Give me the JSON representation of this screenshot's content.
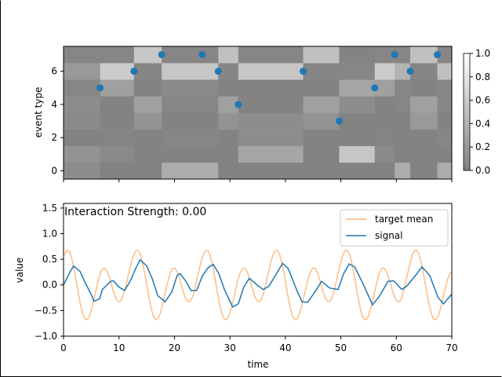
{
  "chart_data": [
    {
      "type": "heatmap",
      "ylabel": "event type",
      "xlim": [
        0,
        70
      ],
      "ylim": [
        -0.5,
        7.5
      ],
      "yticks": [
        "0",
        "2",
        "4",
        "6"
      ],
      "xticks": [
        0,
        10,
        20,
        30,
        40,
        50,
        60,
        70
      ],
      "column_edges": [
        0,
        6.6,
        12.7,
        17.7,
        25.0,
        27.9,
        31.5,
        43.2,
        49.7,
        56.1,
        59.7,
        62.5,
        67.4,
        70
      ],
      "rows": [
        [
          0.1,
          0.02,
          0.02,
          0.35,
          0.35,
          0.02,
          0.02,
          0.02,
          0.02,
          0.02,
          0.35,
          0.02,
          0.35
        ],
        [
          0.15,
          0.08,
          0.02,
          0.02,
          0.02,
          0.02,
          0.3,
          0.02,
          0.55,
          0.08,
          0.02,
          0.02,
          0.02
        ],
        [
          0.02,
          0.03,
          0.02,
          0.05,
          0.05,
          0.02,
          0.1,
          0.02,
          0.02,
          0.03,
          0.02,
          0.02,
          0.05
        ],
        [
          0.08,
          0.02,
          0.15,
          0.02,
          0.02,
          0.15,
          0.1,
          0.15,
          0.02,
          0.02,
          0.02,
          0.2,
          0.02
        ],
        [
          0.1,
          0.02,
          0.25,
          0.05,
          0.05,
          0.25,
          0.02,
          0.25,
          0.1,
          0.02,
          0.05,
          0.25,
          0.05
        ],
        [
          0.05,
          0.25,
          0.02,
          0.08,
          0.08,
          0.02,
          0.02,
          0.02,
          0.3,
          0.25,
          0.05,
          0.02,
          0.05
        ],
        [
          0.2,
          0.6,
          0.05,
          0.55,
          0.55,
          0.05,
          0.55,
          0.05,
          0.05,
          0.6,
          0.4,
          0.05,
          0.5
        ],
        [
          0.05,
          0.05,
          0.55,
          0.05,
          0.05,
          0.5,
          0.05,
          0.5,
          0.02,
          0.05,
          0.05,
          0.5,
          0.05
        ]
      ],
      "events": [
        {
          "t": 6.6,
          "type": 5
        },
        {
          "t": 12.7,
          "type": 6
        },
        {
          "t": 17.7,
          "type": 7
        },
        {
          "t": 25.0,
          "type": 7
        },
        {
          "t": 27.9,
          "type": 6
        },
        {
          "t": 31.5,
          "type": 4
        },
        {
          "t": 43.2,
          "type": 6
        },
        {
          "t": 49.7,
          "type": 3
        },
        {
          "t": 56.1,
          "type": 5
        },
        {
          "t": 59.7,
          "type": 7
        },
        {
          "t": 62.5,
          "type": 6
        },
        {
          "t": 67.4,
          "type": 7
        }
      ],
      "colorbar": {
        "range": [
          0,
          1
        ],
        "ticks": [
          "0.0",
          "0.2",
          "0.4",
          "0.6",
          "0.8",
          "1.0"
        ]
      },
      "colors": {
        "event_marker": "#1f77b4"
      }
    },
    {
      "type": "line",
      "annotation": "Interaction Strength: 0.00",
      "xlabel": "time",
      "ylabel": "value",
      "xlim": [
        0,
        70
      ],
      "ylim": [
        -1.0,
        1.59
      ],
      "xticks": [
        "0",
        "10",
        "20",
        "30",
        "40",
        "50",
        "60",
        "70"
      ],
      "yticks": [
        "−1.0",
        "−0.5",
        "0.0",
        "0.5",
        "1.0",
        "1.5"
      ],
      "legend": {
        "placement": "upper-right",
        "entries": [
          "target mean",
          "signal"
        ]
      },
      "series": [
        {
          "name": "target mean",
          "color": "#ffb26e",
          "extrema": [
            [
              0,
              0.58
            ],
            [
              0.7,
              0.68
            ],
            [
              4.1,
              -0.68
            ],
            [
              7.3,
              0.33
            ],
            [
              10.0,
              -0.33
            ],
            [
              13.3,
              0.68
            ],
            [
              16.7,
              -0.68
            ],
            [
              19.9,
              0.33
            ],
            [
              22.6,
              -0.33
            ],
            [
              25.8,
              0.68
            ],
            [
              29.2,
              -0.68
            ],
            [
              32.5,
              0.33
            ],
            [
              35.2,
              -0.33
            ],
            [
              38.4,
              0.68
            ],
            [
              41.8,
              -0.68
            ],
            [
              45.1,
              0.33
            ],
            [
              47.8,
              -0.33
            ],
            [
              51.0,
              0.68
            ],
            [
              54.4,
              -0.68
            ],
            [
              57.6,
              0.33
            ],
            [
              60.4,
              -0.33
            ],
            [
              63.5,
              0.68
            ],
            [
              67.0,
              -0.68
            ],
            [
              70,
              0.25
            ]
          ]
        },
        {
          "name": "signal",
          "color": "#1f77b4",
          "points": [
            [
              0,
              0.0
            ],
            [
              1,
              0.22
            ],
            [
              1.8,
              0.37
            ],
            [
              3,
              0.26
            ],
            [
              4,
              0.02
            ],
            [
              5,
              -0.19
            ],
            [
              5.5,
              -0.32
            ],
            [
              6.5,
              -0.27
            ],
            [
              7,
              -0.09
            ],
            [
              8.5,
              0.07
            ],
            [
              9,
              0.08
            ],
            [
              10,
              -0.04
            ],
            [
              11,
              -0.11
            ],
            [
              12,
              0.07
            ],
            [
              13,
              0.32
            ],
            [
              13.8,
              0.49
            ],
            [
              15,
              0.37
            ],
            [
              16,
              0.12
            ],
            [
              17,
              -0.21
            ],
            [
              18.3,
              -0.33
            ],
            [
              19.5,
              -0.14
            ],
            [
              20.5,
              0.19
            ],
            [
              21,
              0.22
            ],
            [
              22,
              0.08
            ],
            [
              23,
              -0.11
            ],
            [
              24,
              -0.11
            ],
            [
              25,
              0.17
            ],
            [
              26,
              0.33
            ],
            [
              27,
              0.4
            ],
            [
              28,
              0.22
            ],
            [
              29,
              -0.09
            ],
            [
              30.5,
              -0.43
            ],
            [
              31.5,
              -0.37
            ],
            [
              32.5,
              -0.04
            ],
            [
              33.5,
              0.13
            ],
            [
              35,
              -0.01
            ],
            [
              36,
              -0.09
            ],
            [
              37,
              -0.03
            ],
            [
              38.5,
              0.24
            ],
            [
              39.5,
              0.42
            ],
            [
              40.5,
              0.32
            ],
            [
              42,
              -0.09
            ],
            [
              43,
              -0.33
            ],
            [
              44,
              -0.34
            ],
            [
              45.5,
              -0.11
            ],
            [
              46.5,
              0.07
            ],
            [
              48,
              -0.06
            ],
            [
              49.5,
              -0.09
            ],
            [
              50.5,
              0.22
            ],
            [
              51.5,
              0.41
            ],
            [
              52.5,
              0.35
            ],
            [
              54,
              0.02
            ],
            [
              55.7,
              -0.39
            ],
            [
              57,
              -0.21
            ],
            [
              58.5,
              0.07
            ],
            [
              59.5,
              0.08
            ],
            [
              61,
              -0.09
            ],
            [
              62,
              -0.01
            ],
            [
              63.5,
              0.19
            ],
            [
              64.6,
              0.35
            ],
            [
              66,
              0.19
            ],
            [
              67.5,
              -0.24
            ],
            [
              68.5,
              -0.37
            ],
            [
              70,
              -0.18
            ]
          ]
        }
      ]
    }
  ]
}
